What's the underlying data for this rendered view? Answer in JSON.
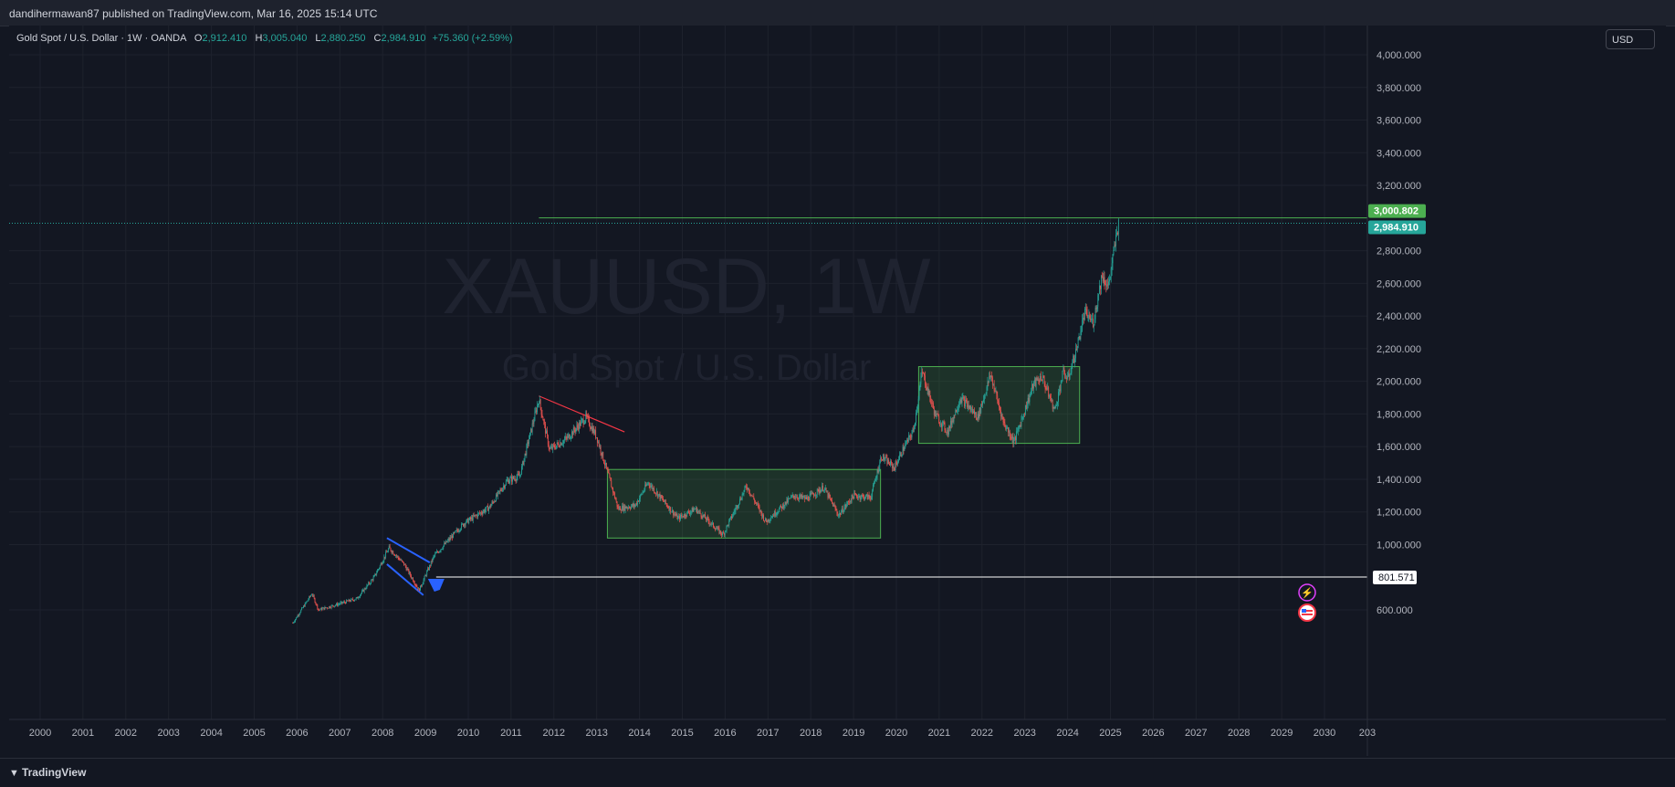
{
  "header": {
    "published": "dandihermawan87 published on TradingView.com, Mar 16, 2025 15:14 UTC"
  },
  "legend": {
    "symbol": "Gold Spot / U.S. Dollar · 1W · OANDA",
    "o_label": "O",
    "o_value": "2,912.410",
    "h_label": "H",
    "h_value": "3,005.040",
    "l_label": "L",
    "l_value": "2,880.250",
    "c_label": "C",
    "c_value": "2,984.910",
    "change": "+75.360 (+2.59%)"
  },
  "currency": "USD",
  "watermark": {
    "line1": "XAUUSD, 1W",
    "line2": "Gold Spot / U.S. Dollar"
  },
  "footer": {
    "brand": "TradingView"
  },
  "colors": {
    "bg": "#131722",
    "up": "#26a69a",
    "down": "#ef5350",
    "box": "#4caf50",
    "trend": "#f23645",
    "channel": "#2962ff"
  },
  "chart_data": {
    "type": "candlestick",
    "ylim": [
      500,
      4050
    ],
    "xlim": [
      1999.8,
      2031.0
    ],
    "y_ticks": [
      {
        "value": 600,
        "label": "600.000"
      },
      {
        "value": 1000,
        "label": "1,000.000"
      },
      {
        "value": 1200,
        "label": "1,200.000"
      },
      {
        "value": 1400,
        "label": "1,400.000"
      },
      {
        "value": 1600,
        "label": "1,600.000"
      },
      {
        "value": 1800,
        "label": "1,800.000"
      },
      {
        "value": 2000,
        "label": "2,000.000"
      },
      {
        "value": 2200,
        "label": "2,200.000"
      },
      {
        "value": 2400,
        "label": "2,400.000"
      },
      {
        "value": 2600,
        "label": "2,600.000"
      },
      {
        "value": 2800,
        "label": "2,800.000"
      },
      {
        "value": 3200,
        "label": "3,200.000"
      },
      {
        "value": 3400,
        "label": "3,400.000"
      },
      {
        "value": 3600,
        "label": "3,600.000"
      },
      {
        "value": 3800,
        "label": "3,800.000"
      },
      {
        "value": 4000,
        "label": "4,000.000"
      }
    ],
    "x_ticks": [
      "2000",
      "2001",
      "2002",
      "2003",
      "2004",
      "2005",
      "2006",
      "2007",
      "2008",
      "2009",
      "2010",
      "2011",
      "2012",
      "2013",
      "2014",
      "2015",
      "2016",
      "2017",
      "2018",
      "2019",
      "2020",
      "2021",
      "2022",
      "2023",
      "2024",
      "2025",
      "2026",
      "2027",
      "2028",
      "2029",
      "2030",
      "203"
    ],
    "price_path": [
      [
        2005.9,
        520
      ],
      [
        2006.35,
        700
      ],
      [
        2006.5,
        600
      ],
      [
        2006.9,
        630
      ],
      [
        2007.4,
        670
      ],
      [
        2007.8,
        800
      ],
      [
        2008.15,
        980
      ],
      [
        2008.5,
        880
      ],
      [
        2008.85,
        720
      ],
      [
        2009.2,
        930
      ],
      [
        2009.9,
        1130
      ],
      [
        2010.5,
        1230
      ],
      [
        2010.9,
        1390
      ],
      [
        2011.2,
        1420
      ],
      [
        2011.65,
        1890
      ],
      [
        2011.9,
        1580
      ],
      [
        2012.3,
        1650
      ],
      [
        2012.75,
        1780
      ],
      [
        2013.0,
        1660
      ],
      [
        2013.3,
        1400
      ],
      [
        2013.5,
        1220
      ],
      [
        2013.9,
        1240
      ],
      [
        2014.2,
        1380
      ],
      [
        2014.9,
        1160
      ],
      [
        2015.3,
        1220
      ],
      [
        2015.95,
        1060
      ],
      [
        2016.5,
        1360
      ],
      [
        2016.95,
        1140
      ],
      [
        2017.6,
        1300
      ],
      [
        2017.9,
        1280
      ],
      [
        2018.3,
        1350
      ],
      [
        2018.65,
        1180
      ],
      [
        2019.0,
        1300
      ],
      [
        2019.4,
        1290
      ],
      [
        2019.65,
        1540
      ],
      [
        2019.95,
        1470
      ],
      [
        2020.15,
        1580
      ],
      [
        2020.4,
        1700
      ],
      [
        2020.6,
        2060
      ],
      [
        2020.9,
        1800
      ],
      [
        2021.2,
        1690
      ],
      [
        2021.5,
        1900
      ],
      [
        2021.9,
        1780
      ],
      [
        2022.2,
        2040
      ],
      [
        2022.5,
        1750
      ],
      [
        2022.75,
        1630
      ],
      [
        2023.2,
        1980
      ],
      [
        2023.4,
        2030
      ],
      [
        2023.7,
        1820
      ],
      [
        2023.9,
        2060
      ],
      [
        2024.0,
        2010
      ],
      [
        2024.2,
        2190
      ],
      [
        2024.4,
        2420
      ],
      [
        2024.6,
        2360
      ],
      [
        2024.8,
        2650
      ],
      [
        2024.95,
        2580
      ],
      [
        2025.2,
        2985
      ]
    ],
    "levels": [
      {
        "price": 3000.802,
        "label": "3,000.802",
        "color": "#4caf50"
      },
      {
        "price": 2984.91,
        "label": "2,984.910",
        "color": "#26a69a"
      },
      {
        "price": 801.571,
        "label": "801.571",
        "color": "#ffffff"
      }
    ],
    "boxes": [
      {
        "x0": 2013.25,
        "x1": 2019.63,
        "y0": 1040,
        "y1": 1460
      },
      {
        "x0": 2020.52,
        "x1": 2024.28,
        "y0": 1620,
        "y1": 2090
      }
    ],
    "trendline": {
      "x0": 2011.65,
      "y0": 1910,
      "x1": 2013.65,
      "y1": 1690
    },
    "channel": [
      {
        "x0": 2008.1,
        "y0": 1040,
        "x1": 2009.1,
        "y1": 890
      },
      {
        "x0": 2008.1,
        "y0": 880,
        "x1": 2008.95,
        "y1": 690
      }
    ],
    "resistance_start_x": 2011.65
  }
}
